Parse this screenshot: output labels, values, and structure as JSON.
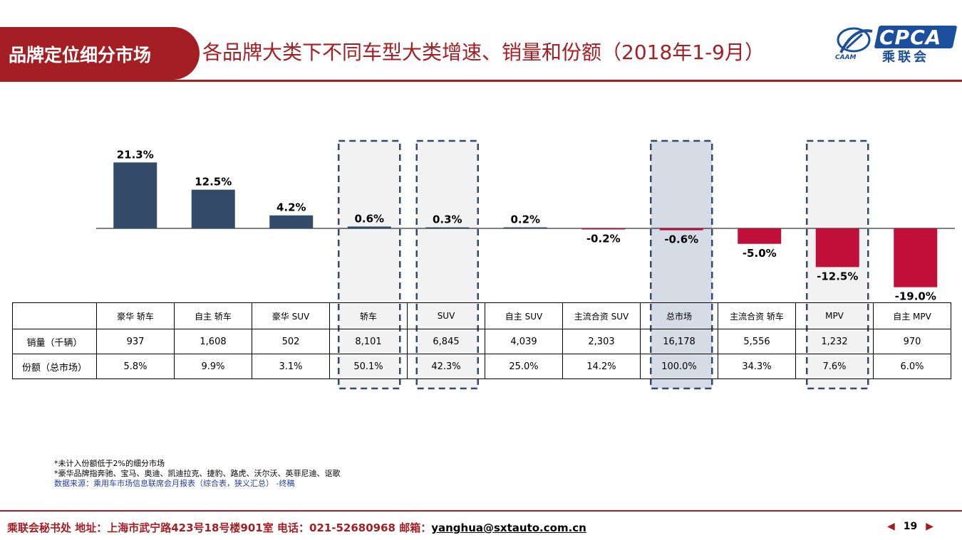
{
  "header": {
    "tab_label": "品牌定位细分市场",
    "title": "各品牌大类下不同车型大类增速、销量和份额（2018年1-9月）"
  },
  "logo": {
    "text_cpca": "CPCA",
    "text_cn": "乘联会",
    "text_caam": "CAAM"
  },
  "colors": {
    "positive": "#344a6b",
    "negative": "#c0103a",
    "accent": "#a31f24",
    "highlight_total": "#d6dce6",
    "highlight": "#f2f2f2",
    "dash": "#344a6b"
  },
  "chart_data": {
    "type": "bar",
    "categories": [
      "豪华 轿车",
      "自主 轿车",
      "豪华 SUV",
      "轿车",
      "SUV",
      "自主 SUV",
      "主流合资 SUV",
      "总市场",
      "主流合资 轿车",
      "MPV",
      "自主 MPV"
    ],
    "values": [
      21.3,
      12.5,
      4.2,
      0.6,
      0.3,
      0.2,
      -0.2,
      -0.6,
      -5.0,
      -12.5,
      -19.0
    ],
    "value_labels": [
      "21.3%",
      "12.5%",
      "4.2%",
      "0.6%",
      "0.3%",
      "0.2%",
      "-0.2%",
      "-0.6%",
      "-5.0%",
      "-12.5%",
      "-19.0%"
    ],
    "highlighted": [
      "轿车",
      "SUV",
      "总市场",
      "MPV"
    ],
    "grid": false
  },
  "table": {
    "rows": [
      {
        "label": "销量（千辆）",
        "values": [
          "937",
          "1,608",
          "502",
          "8,101",
          "6,845",
          "4,039",
          "2,303",
          "16,178",
          "5,556",
          "1,232",
          "970"
        ]
      },
      {
        "label": "份额（总市场）",
        "values": [
          "5.8%",
          "9.9%",
          "3.1%",
          "50.1%",
          "42.3%",
          "25.0%",
          "14.2%",
          "100.0%",
          "34.3%",
          "7.6%",
          "6.0%"
        ]
      }
    ]
  },
  "notes": {
    "line1": "*未计入份额低于2%的细分市场",
    "line2": "*豪华品牌指奔驰、宝马、奥迪、凯迪拉克、捷豹、路虎、沃尔沃、英菲尼迪、讴歌",
    "source": "数据来源：乘用车市场信息联席会月报表（综合表，狭义汇总） -终稿"
  },
  "footer": {
    "prefix": "乘联会秘书处  地址：上海市武宁路423号18号楼901室  电话：021-52680968  邮箱：",
    "email": "yanghua@sxtauto.com.cn",
    "page": "19",
    "prev_icon": "prev-arrow-icon",
    "next_icon": "next-arrow-icon"
  }
}
